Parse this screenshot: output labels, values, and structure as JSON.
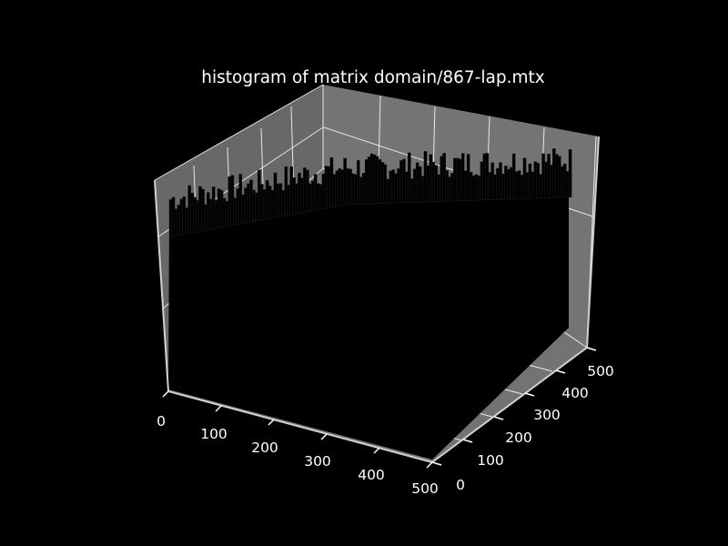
{
  "chart_data": {
    "type": "3d-bar",
    "title": "histogram of matrix domain/867-lap.mtx",
    "x_ticks": [
      "0",
      "100",
      "200",
      "300",
      "400",
      "500"
    ],
    "y_ticks": [
      "0",
      "100",
      "200",
      "300",
      "400",
      "500"
    ],
    "xlim": [
      0,
      500
    ],
    "ylim": [
      0,
      500
    ],
    "grid": true,
    "colors": {
      "background": "#000000",
      "pane": "#808080",
      "grid": "#ffffff",
      "bars": "#000000",
      "text": "#ffffff"
    }
  }
}
